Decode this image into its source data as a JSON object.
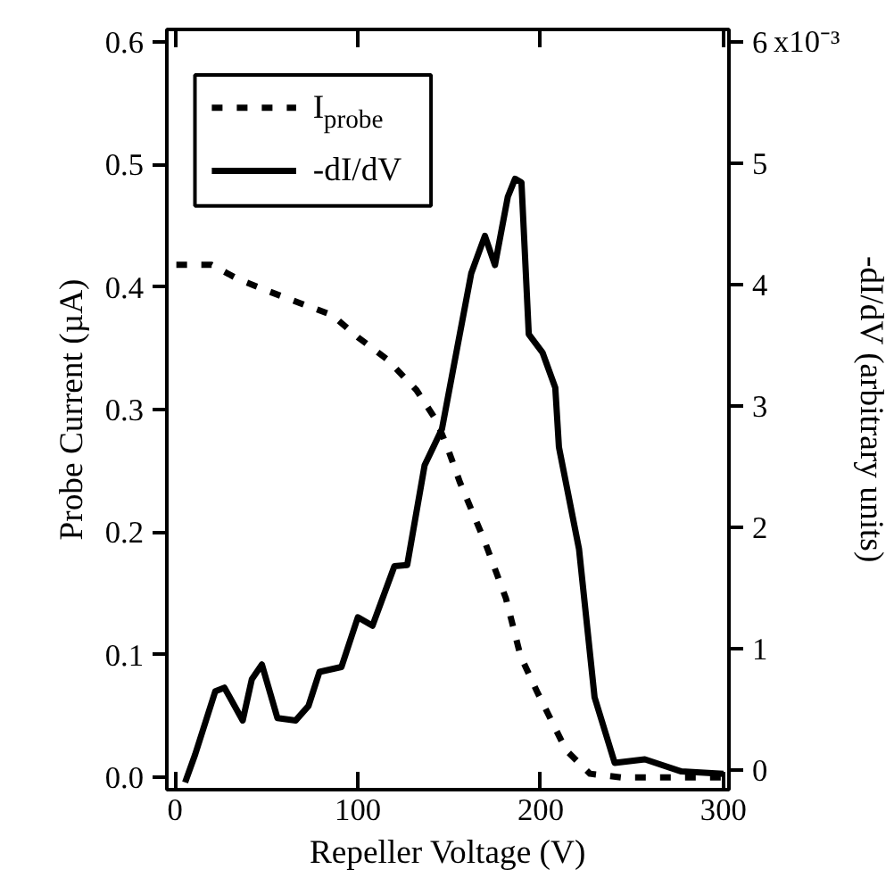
{
  "chart_data": {
    "type": "line",
    "xlabel": "Repeller Voltage (V)",
    "ylabel": "Probe Current (µA)",
    "y2label": "-dI/dV (arbitrary units)",
    "xlim": [
      -4.5,
      303
    ],
    "xticks": [
      0,
      100,
      200,
      300
    ],
    "ylim": [
      -0.01,
      0.61
    ],
    "yticks": [
      {
        "value": 0,
        "label": "0.0"
      },
      0.1,
      0.2,
      0.3,
      0.4,
      0.5,
      0.6
    ],
    "y2lim": [
      -0.16,
      6.1
    ],
    "y2ticks": [
      0,
      1,
      2,
      3,
      4,
      5,
      6
    ],
    "annotations": [
      "x10⁻³"
    ],
    "legend": "top left",
    "grid": false,
    "series": [
      {
        "name": "I$_{probe}$",
        "color": "#000000",
        "line_style": "dashed",
        "x": [
          0.7,
          20,
          35,
          52,
          68,
          86,
          100,
          116,
          132,
          143,
          149,
          156,
          169,
          181,
          189,
          198,
          214,
          227,
          244,
          280,
          300
        ],
        "values": [
          0.418,
          0.418,
          0.406,
          0.396,
          0.387,
          0.377,
          0.359,
          0.341,
          0.316,
          0.291,
          0.269,
          0.24,
          0.194,
          0.146,
          0.099,
          0.07,
          0.022,
          0.003,
          0.0,
          0.0,
          0.0
        ]
      },
      {
        "name": "-dI/dV",
        "color": "#000000",
        "line_style": "solid",
        "axis": "y2",
        "x": [
          5.5,
          11,
          22,
          27,
          37,
          42,
          47.5,
          56,
          66,
          73,
          79,
          91,
          100,
          108,
          120,
          127,
          136.5,
          146,
          152,
          162,
          169.5,
          175,
          182,
          186,
          189.5,
          193.5,
          201,
          208,
          210,
          221,
          229.5,
          240.5,
          257,
          277,
          300
        ],
        "values": [
          -0.1,
          0.13,
          0.65,
          0.68,
          0.41,
          0.75,
          0.87,
          0.43,
          0.41,
          0.53,
          0.81,
          0.85,
          1.26,
          1.19,
          1.68,
          1.69,
          2.51,
          2.81,
          3.29,
          4.09,
          4.4,
          4.16,
          4.72,
          4.87,
          4.84,
          3.59,
          3.44,
          3.15,
          2.66,
          1.82,
          0.6,
          0.06,
          0.09,
          -0.01,
          -0.03
        ]
      }
    ]
  }
}
